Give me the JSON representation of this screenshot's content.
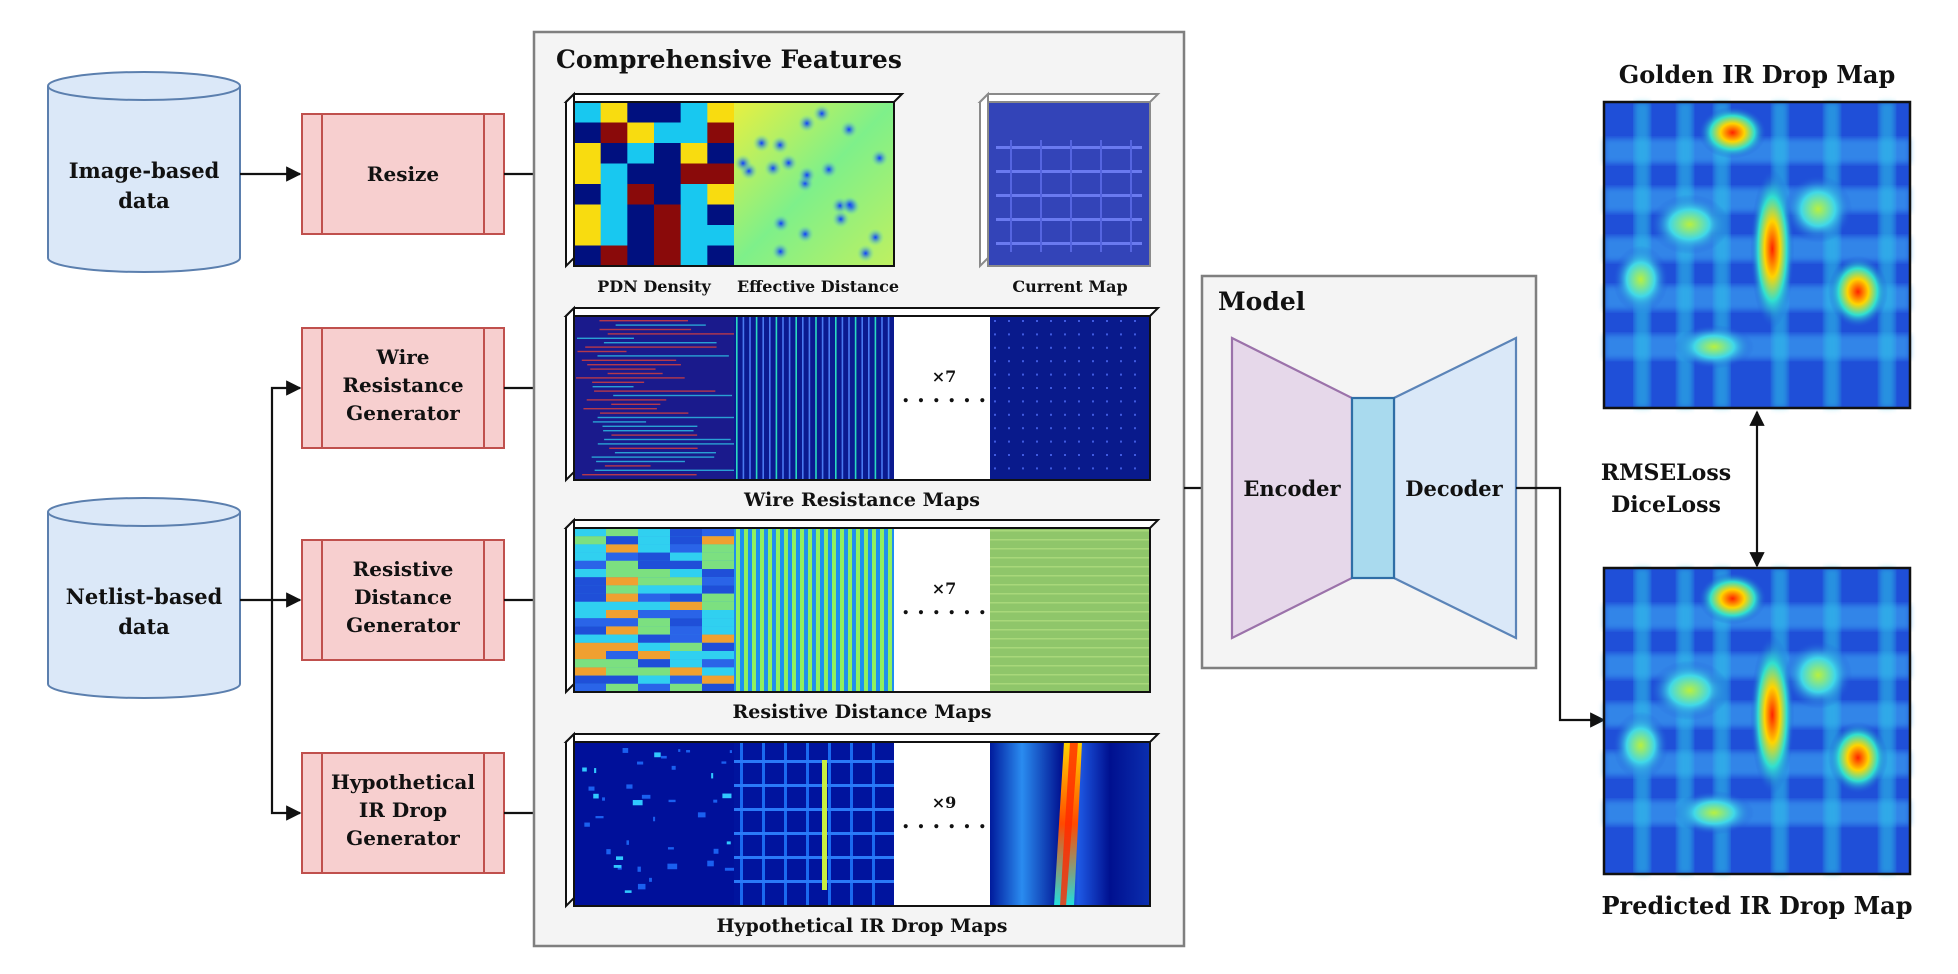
{
  "sources": {
    "image_based": [
      "Image-based",
      "data"
    ],
    "netlist_based": [
      "Netlist-based",
      "data"
    ]
  },
  "processors": {
    "resize": [
      "Resize"
    ],
    "wire_resistance": [
      "Wire",
      "Resistance",
      "Generator"
    ],
    "resistive_distance": [
      "Resistive",
      "Distance",
      "Generator"
    ],
    "hypothetical_ir": [
      "Hypothetical",
      "IR Drop",
      "Generator"
    ]
  },
  "features": {
    "title": "Comprehensive Features",
    "labels": {
      "pdn_density": "PDN Density",
      "effective_distance": "Effective Distance",
      "current_map": "Current Map"
    },
    "groups": {
      "wire_resistance": {
        "caption": "Wire Resistance Maps",
        "multiplier": "×7"
      },
      "resistive_distance": {
        "caption": "Resistive Distance Maps",
        "multiplier": "×7"
      },
      "hypothetical_ir": {
        "caption": "Hypothetical IR Drop Maps",
        "multiplier": "×9"
      }
    }
  },
  "model": {
    "title": "Model",
    "encoder": "Encoder",
    "decoder": "Decoder"
  },
  "outputs": {
    "golden": "Golden IR Drop Map",
    "predicted": "Predicted IR Drop Map",
    "loss_lines": [
      "RMSELoss",
      "DiceLoss"
    ]
  },
  "colors": {
    "cylinder_fill": "#dbe8f8",
    "cylinder_stroke": "#5b7fae",
    "generator_fill": "#f7cfcf",
    "generator_stroke": "#c0504d",
    "panel_fill": "#f4f4f4",
    "panel_stroke": "#7f7f7f",
    "encoder_fill": "#e6d8ea",
    "encoder_stroke": "#9b72aa",
    "decoder_fill": "#dae8f8",
    "decoder_stroke": "#5b84b8",
    "bottleneck_fill": "#a9daee",
    "bottleneck_stroke": "#2f6ea6",
    "heat_bg": "#1f4fd8"
  }
}
